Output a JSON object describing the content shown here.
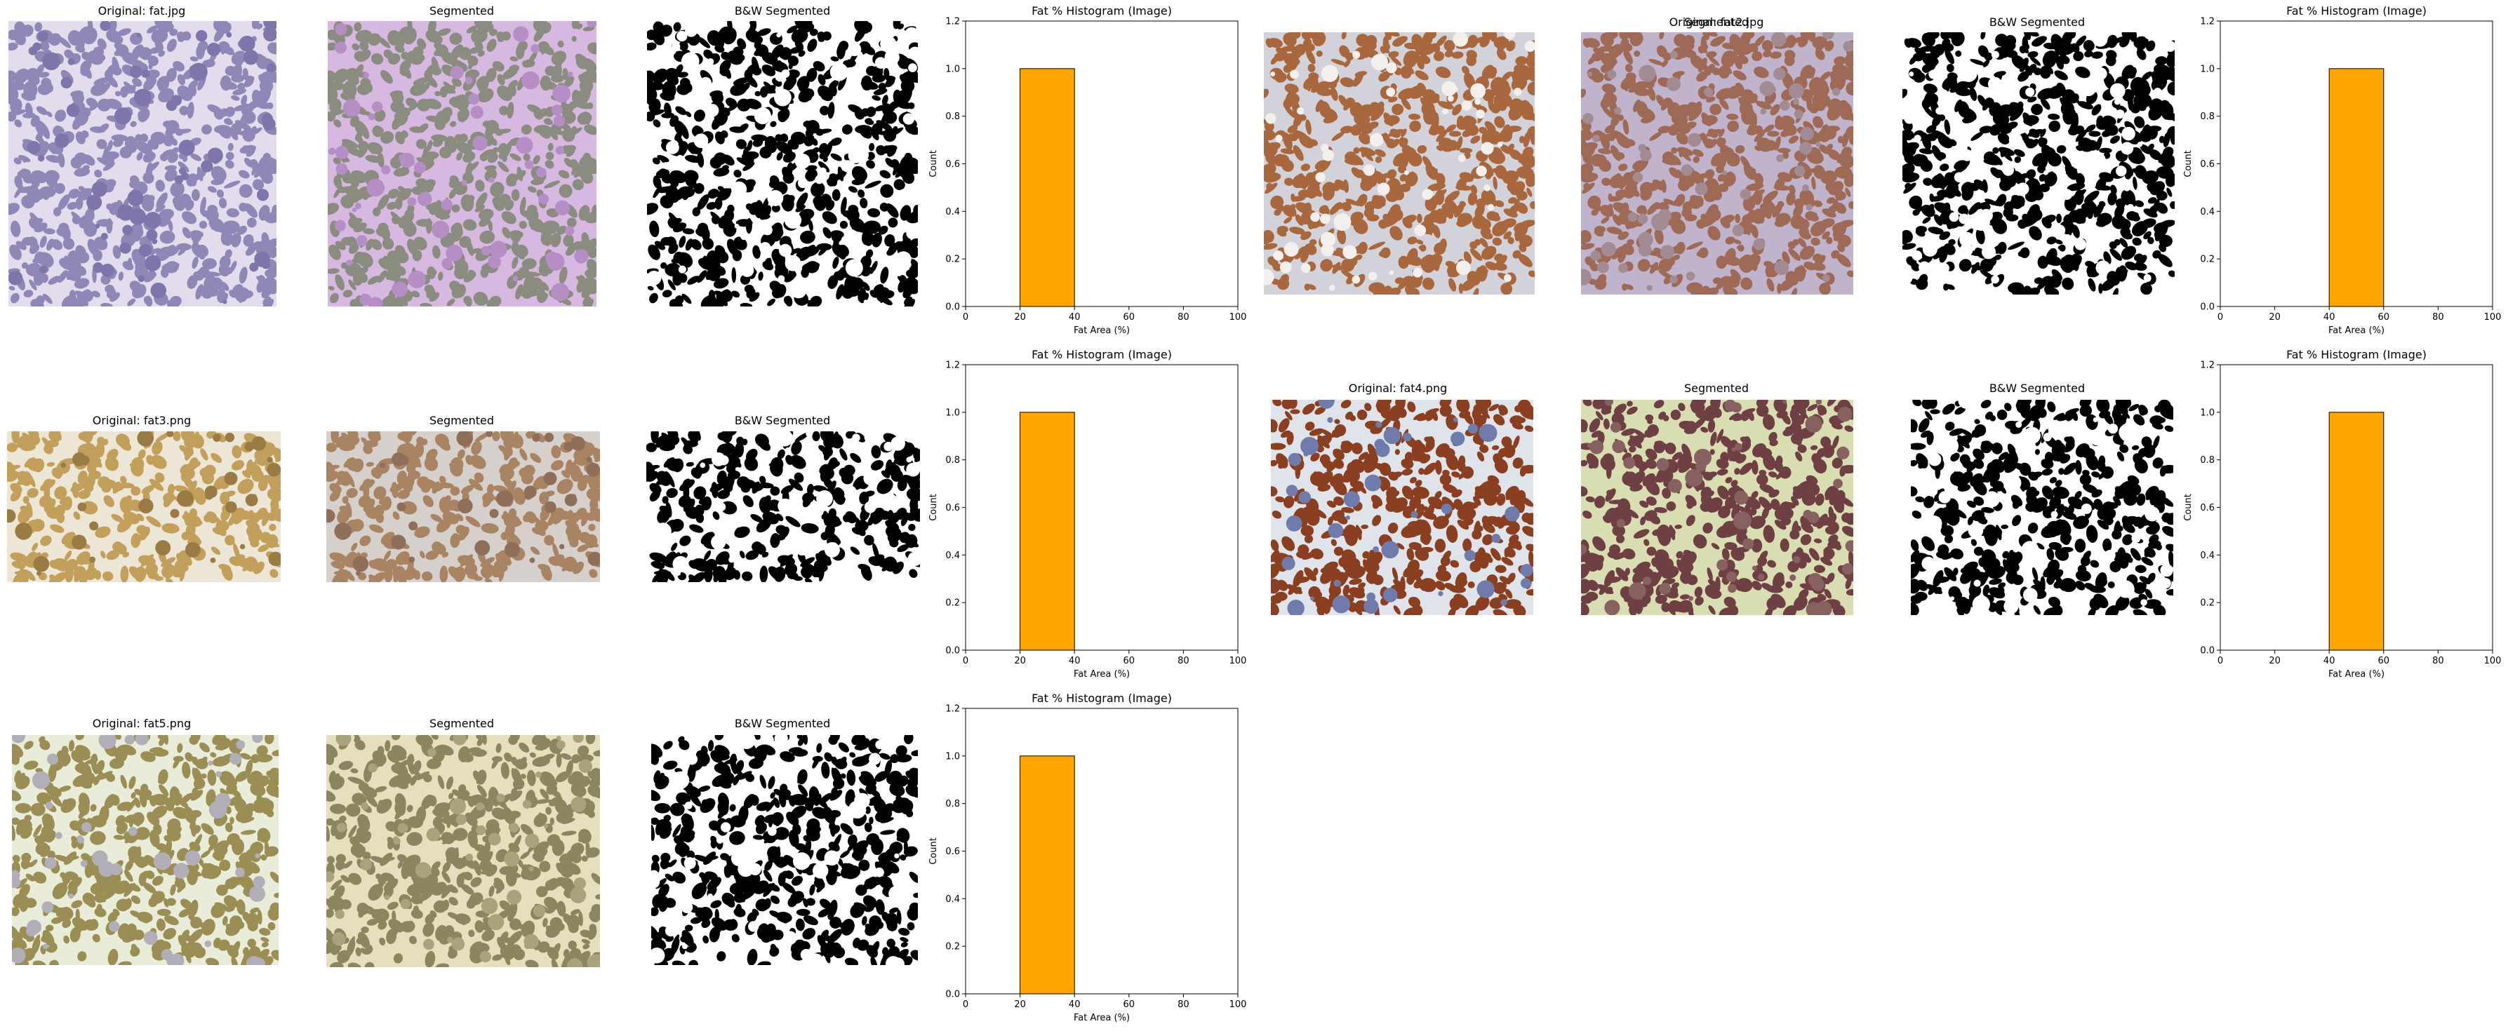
{
  "figure": {
    "rows": [
      {
        "original_title": "Original: fat.jpg",
        "segmented_title": "Segmented",
        "bw_title": "B&W Segmented",
        "orig_colors": [
          "#8f87b5",
          "#e2dced",
          "#7e76aa"
        ],
        "seg_colors": [
          "#8a8c7f",
          "#d6b8e0",
          "#b48ec5"
        ],
        "bw_fg": "#000000"
      },
      {
        "original_title": "Original: fat2.jpg",
        "segmented_title": "Segmented",
        "bw_title": "B&W Segmented",
        "orig_colors": [
          "#a8673c",
          "#d2d3da",
          "#f2efec"
        ],
        "seg_colors": [
          "#9e6a56",
          "#c0b3cc",
          "#a28b92"
        ],
        "bw_fg": "#000000"
      },
      {
        "original_title": "Original: fat3.png",
        "segmented_title": "Segmented",
        "bw_title": "B&W Segmented",
        "orig_colors": [
          "#c2a05c",
          "#ece6d6",
          "#9a7b44"
        ],
        "seg_colors": [
          "#a88462",
          "#d6d0cc",
          "#8f6f5a"
        ],
        "bw_fg": "#000000"
      },
      {
        "original_title": "Original: fat4.png",
        "segmented_title": "Segmented",
        "bw_title": "B&W Segmented",
        "orig_colors": [
          "#8a4020",
          "#dfe3ea",
          "#6f7cab"
        ],
        "seg_colors": [
          "#6e4044",
          "#d9deb2",
          "#876060"
        ],
        "bw_fg": "#000000"
      },
      {
        "original_title": "Original: fat5.png",
        "segmented_title": "Segmented",
        "bw_title": "B&W Segmented",
        "orig_colors": [
          "#9a8e55",
          "#e8ecd8",
          "#b1aeb8"
        ],
        "seg_colors": [
          "#8c8660",
          "#e6dfbd",
          "#a9a27d"
        ],
        "bw_fg": "#000000"
      }
    ],
    "bar_color": "#ffa500",
    "edge_color": "#000000"
  },
  "chart_data": [
    {
      "type": "bar",
      "title": "Fat % Histogram (Image)",
      "xlabel": "Fat Area (%)",
      "ylabel": "Count",
      "xlim": [
        0,
        100
      ],
      "ylim": [
        0,
        1.2
      ],
      "xticks": [
        "0",
        "20",
        "40",
        "60",
        "80",
        "100"
      ],
      "yticks": [
        "0.0",
        "0.2",
        "0.4",
        "0.6",
        "0.8",
        "1.0",
        "1.2"
      ],
      "bins": [
        {
          "x0": 20,
          "x1": 40,
          "count": 1
        }
      ]
    },
    {
      "type": "bar",
      "title": "Fat % Histogram (Image)",
      "xlabel": "Fat Area (%)",
      "ylabel": "Count",
      "xlim": [
        0,
        100
      ],
      "ylim": [
        0,
        1.2
      ],
      "xticks": [
        "0",
        "20",
        "40",
        "60",
        "80",
        "100"
      ],
      "yticks": [
        "0.0",
        "0.2",
        "0.4",
        "0.6",
        "0.8",
        "1.0",
        "1.2"
      ],
      "bins": [
        {
          "x0": 40,
          "x1": 60,
          "count": 1
        }
      ]
    },
    {
      "type": "bar",
      "title": "Fat % Histogram (Image)",
      "xlabel": "Fat Area (%)",
      "ylabel": "Count",
      "xlim": [
        0,
        100
      ],
      "ylim": [
        0,
        1.2
      ],
      "xticks": [
        "0",
        "20",
        "40",
        "60",
        "80",
        "100"
      ],
      "yticks": [
        "0.0",
        "0.2",
        "0.4",
        "0.6",
        "0.8",
        "1.0",
        "1.2"
      ],
      "bins": [
        {
          "x0": 20,
          "x1": 40,
          "count": 1
        }
      ]
    },
    {
      "type": "bar",
      "title": "Fat % Histogram (Image)",
      "xlabel": "Fat Area (%)",
      "ylabel": "Count",
      "xlim": [
        0,
        100
      ],
      "ylim": [
        0,
        1.2
      ],
      "xticks": [
        "0",
        "20",
        "40",
        "60",
        "80",
        "100"
      ],
      "yticks": [
        "0.0",
        "0.2",
        "0.4",
        "0.6",
        "0.8",
        "1.0",
        "1.2"
      ],
      "bins": [
        {
          "x0": 40,
          "x1": 60,
          "count": 1
        }
      ]
    },
    {
      "type": "bar",
      "title": "Fat % Histogram (Image)",
      "xlabel": "Fat Area (%)",
      "ylabel": "Count",
      "xlim": [
        0,
        100
      ],
      "ylim": [
        0,
        1.2
      ],
      "xticks": [
        "0",
        "20",
        "40",
        "60",
        "80",
        "100"
      ],
      "yticks": [
        "0.0",
        "0.2",
        "0.4",
        "0.6",
        "0.8",
        "1.0",
        "1.2"
      ],
      "bins": [
        {
          "x0": 20,
          "x1": 40,
          "count": 1
        }
      ]
    }
  ]
}
